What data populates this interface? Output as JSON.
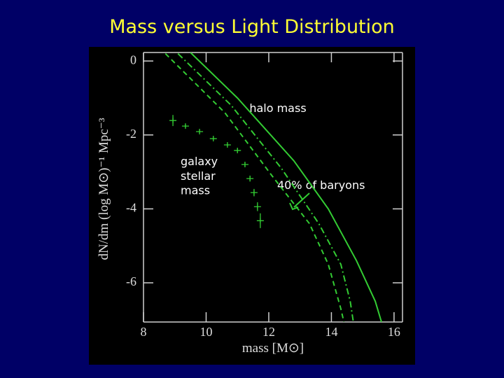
{
  "chart_data": {
    "type": "line",
    "title": "Mass versus Light Distribution",
    "x_label": "mass [M⊙]",
    "y_label": "dN/dm (log M⊙)⁻¹ Mpc⁻³",
    "xlim": [
      8,
      16.27
    ],
    "ylim": [
      -7.06,
      0.23
    ],
    "xticks": [
      8,
      10,
      12,
      14,
      16
    ],
    "yticks": [
      0,
      -2,
      -4,
      -6
    ],
    "annotations": [
      "halo mass",
      "galaxy\nstellar\nmass",
      "40% of baryons"
    ],
    "series": [
      {
        "color": "#33cc33",
        "line_style": "solid",
        "x": [
          9.5,
          11.0,
          12.8,
          13.9,
          14.8,
          15.4,
          15.6
        ],
        "values": [
          0.23,
          -1.0,
          -2.7,
          -4.0,
          -5.4,
          -6.5,
          -7.06
        ]
      },
      {
        "color": "#33cc33",
        "line_style": "dashdot",
        "x": [
          9.1,
          10.8,
          12.4,
          13.6,
          14.3,
          14.6,
          14.7
        ],
        "values": [
          0.2,
          -1.2,
          -2.9,
          -4.4,
          -5.5,
          -6.5,
          -7.06
        ]
      },
      {
        "color": "#33cc33",
        "line_style": "dashed",
        "x": [
          8.7,
          10.6,
          12.1,
          13.3,
          13.9,
          14.3,
          14.4
        ],
        "values": [
          0.2,
          -1.4,
          -3.1,
          -4.4,
          -5.5,
          -6.7,
          -7.06
        ]
      },
      {
        "color": "#33cc33",
        "marker": "+",
        "x": [
          8.94,
          9.34,
          9.79,
          10.23,
          10.68,
          11.0,
          11.24,
          11.4,
          11.53,
          11.64,
          11.73
        ],
        "values": [
          -1.61,
          -1.76,
          -1.91,
          -2.1,
          -2.27,
          -2.42,
          -2.8,
          -3.18,
          -3.56,
          -3.94,
          -4.32
        ],
        "errors": [
          0.15,
          0.05,
          0.04,
          0.04,
          0.04,
          0.05,
          0.06,
          0.08,
          0.1,
          0.12,
          0.2
        ]
      }
    ]
  }
}
